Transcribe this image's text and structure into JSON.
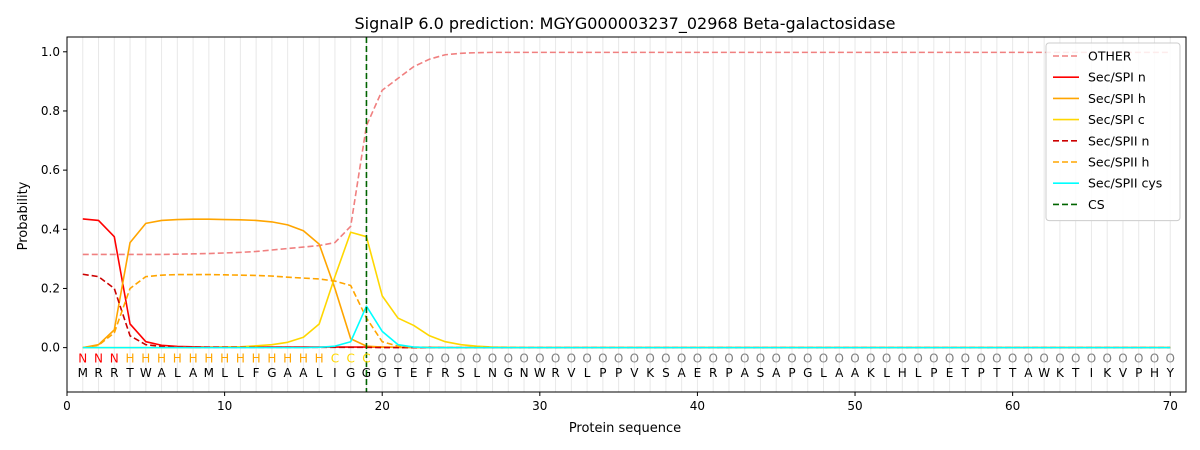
{
  "chart_data": {
    "type": "line",
    "title": "SignalP 6.0 prediction: MGYG000003237_02968 Beta-galactosidase",
    "xlabel": "Protein sequence",
    "ylabel": "Probability",
    "xlim": [
      0,
      71
    ],
    "ylim": [
      -0.15,
      1.05
    ],
    "xticks": [
      0,
      10,
      20,
      30,
      40,
      50,
      60,
      70
    ],
    "yticks": [
      0.0,
      0.2,
      0.4,
      0.6,
      0.8,
      1.0
    ],
    "legend_position": "top-right",
    "grid": "vertical lines at each residue position",
    "cleavage_site": 19,
    "sequence": [
      "M",
      "R",
      "R",
      "T",
      "W",
      "A",
      "L",
      "A",
      "M",
      "L",
      "L",
      "F",
      "G",
      "A",
      "A",
      "L",
      "I",
      "G",
      "G",
      "G",
      "T",
      "E",
      "F",
      "R",
      "S",
      "L",
      "N",
      "G",
      "N",
      "W",
      "R",
      "V",
      "L",
      "P",
      "P",
      "V",
      "K",
      "S",
      "A",
      "E",
      "R",
      "P",
      "A",
      "S",
      "A",
      "P",
      "G",
      "L",
      "A",
      "A",
      "K",
      "L",
      "H",
      "L",
      "P",
      "E",
      "T",
      "P",
      "T",
      "T",
      "A",
      "W",
      "K",
      "T",
      "I",
      "K",
      "V",
      "P",
      "H",
      "Y"
    ],
    "region_labels": [
      "N",
      "N",
      "N",
      "H",
      "H",
      "H",
      "H",
      "H",
      "H",
      "H",
      "H",
      "H",
      "H",
      "H",
      "H",
      "H",
      "C",
      "C",
      "C",
      "O",
      "O",
      "O",
      "O",
      "O",
      "O",
      "O",
      "O",
      "O",
      "O",
      "O",
      "O",
      "O",
      "O",
      "O",
      "O",
      "O",
      "O",
      "O",
      "O",
      "O",
      "O",
      "O",
      "O",
      "O",
      "O",
      "O",
      "O",
      "O",
      "O",
      "O",
      "O",
      "O",
      "O",
      "O",
      "O",
      "O",
      "O",
      "O",
      "O",
      "O",
      "O",
      "O",
      "O",
      "O",
      "O",
      "O",
      "O",
      "O",
      "O",
      "O"
    ],
    "region_colors": {
      "N": "#ff0000",
      "H": "#ffa500",
      "C": "#ffd700",
      "O": "#808080"
    },
    "series": [
      {
        "name": "OTHER",
        "color": "#f08080",
        "dash": "dashed",
        "values": [
          0.315,
          0.315,
          0.315,
          0.315,
          0.315,
          0.315,
          0.316,
          0.317,
          0.318,
          0.32,
          0.322,
          0.325,
          0.33,
          0.335,
          0.34,
          0.345,
          0.355,
          0.41,
          0.75,
          0.87,
          0.91,
          0.95,
          0.975,
          0.99,
          0.995,
          0.997,
          0.998,
          0.998,
          0.998,
          0.998,
          0.998,
          0.998,
          0.998,
          0.998,
          0.998,
          0.998,
          0.998,
          0.998,
          0.998,
          0.998,
          0.998,
          0.998,
          0.998,
          0.998,
          0.998,
          0.998,
          0.998,
          0.998,
          0.998,
          0.998,
          0.998,
          0.998,
          0.998,
          0.998,
          0.998,
          0.998,
          0.998,
          0.998,
          0.998,
          0.998,
          0.998,
          0.998,
          0.998,
          0.998,
          0.998,
          0.998,
          0.998,
          0.998,
          0.998,
          0.998
        ],
        "x_start": 1
      },
      {
        "name": "Sec/SPI n",
        "color": "#ff0000",
        "dash": "solid",
        "values": [
          0.435,
          0.43,
          0.375,
          0.08,
          0.02,
          0.008,
          0.004,
          0.003,
          0.002,
          0.002,
          0.002,
          0.002,
          0.002,
          0.002,
          0.002,
          0.002,
          0.002,
          0.002,
          0.002,
          0.002,
          0.001,
          0.001,
          0.001,
          0,
          0,
          0,
          0,
          0,
          0,
          0,
          0,
          0,
          0,
          0,
          0,
          0,
          0,
          0,
          0,
          0,
          0,
          0,
          0,
          0,
          0,
          0,
          0,
          0,
          0,
          0,
          0,
          0,
          0,
          0,
          0,
          0,
          0,
          0,
          0,
          0,
          0,
          0,
          0,
          0,
          0,
          0,
          0,
          0,
          0,
          0
        ],
        "x_start": 1
      },
      {
        "name": "Sec/SPI h",
        "color": "#ffa500",
        "dash": "solid",
        "values": [
          0.0,
          0.01,
          0.06,
          0.355,
          0.42,
          0.43,
          0.433,
          0.434,
          0.434,
          0.433,
          0.432,
          0.43,
          0.425,
          0.415,
          0.395,
          0.35,
          0.2,
          0.03,
          0.005,
          0.002,
          0.001,
          0,
          0,
          0,
          0,
          0,
          0,
          0,
          0,
          0,
          0,
          0,
          0,
          0,
          0,
          0,
          0,
          0,
          0,
          0,
          0,
          0,
          0,
          0,
          0,
          0,
          0,
          0,
          0,
          0,
          0,
          0,
          0,
          0,
          0,
          0,
          0,
          0,
          0,
          0,
          0,
          0,
          0,
          0,
          0,
          0,
          0,
          0,
          0,
          0
        ],
        "x_start": 1
      },
      {
        "name": "Sec/SPI c",
        "color": "#ffd700",
        "dash": "solid",
        "values": [
          0,
          0,
          0,
          0,
          0,
          0,
          0,
          0,
          0.001,
          0.002,
          0.003,
          0.006,
          0.01,
          0.018,
          0.035,
          0.08,
          0.24,
          0.39,
          0.375,
          0.175,
          0.1,
          0.075,
          0.04,
          0.02,
          0.01,
          0.005,
          0.002,
          0.001,
          0,
          0,
          0,
          0,
          0,
          0,
          0,
          0,
          0,
          0,
          0,
          0,
          0,
          0,
          0,
          0,
          0,
          0,
          0,
          0,
          0,
          0,
          0,
          0,
          0,
          0,
          0,
          0,
          0,
          0,
          0,
          0,
          0,
          0,
          0,
          0,
          0,
          0,
          0,
          0,
          0,
          0
        ],
        "x_start": 1
      },
      {
        "name": "Sec/SPII n",
        "color": "#cc0000",
        "dash": "dashed",
        "values": [
          0.248,
          0.24,
          0.2,
          0.04,
          0.01,
          0.004,
          0.002,
          0.001,
          0.001,
          0.001,
          0.001,
          0.001,
          0.001,
          0.001,
          0.001,
          0.001,
          0.001,
          0.001,
          0.001,
          0,
          0,
          0,
          0,
          0,
          0,
          0,
          0,
          0,
          0,
          0,
          0,
          0,
          0,
          0,
          0,
          0,
          0,
          0,
          0,
          0,
          0,
          0,
          0,
          0,
          0,
          0,
          0,
          0,
          0,
          0,
          0,
          0,
          0,
          0,
          0,
          0,
          0,
          0,
          0,
          0,
          0,
          0,
          0,
          0,
          0,
          0,
          0,
          0,
          0,
          0
        ],
        "x_start": 1
      },
      {
        "name": "Sec/SPII h",
        "color": "#ffa500",
        "dash": "dashed",
        "values": [
          0.0,
          0.008,
          0.05,
          0.2,
          0.24,
          0.245,
          0.247,
          0.247,
          0.247,
          0.246,
          0.245,
          0.244,
          0.242,
          0.238,
          0.235,
          0.232,
          0.225,
          0.21,
          0.1,
          0.02,
          0.005,
          0.002,
          0.001,
          0,
          0,
          0,
          0,
          0,
          0,
          0,
          0,
          0,
          0,
          0,
          0,
          0,
          0,
          0,
          0,
          0,
          0,
          0,
          0,
          0,
          0,
          0,
          0,
          0,
          0,
          0,
          0,
          0,
          0,
          0,
          0,
          0,
          0,
          0,
          0,
          0,
          0,
          0,
          0,
          0,
          0,
          0,
          0,
          0,
          0,
          0
        ],
        "x_start": 1
      },
      {
        "name": "Sec/SPII cys",
        "color": "#00ffff",
        "dash": "solid",
        "values": [
          0,
          0,
          0,
          0,
          0,
          0,
          0,
          0,
          0,
          0,
          0,
          0,
          0,
          0,
          0,
          0.001,
          0.005,
          0.02,
          0.14,
          0.055,
          0.01,
          0.002,
          0,
          0,
          0,
          0,
          0,
          0,
          0,
          0,
          0,
          0,
          0,
          0,
          0,
          0,
          0,
          0,
          0,
          0,
          0,
          0,
          0,
          0,
          0,
          0,
          0,
          0,
          0,
          0,
          0,
          0,
          0,
          0,
          0,
          0,
          0,
          0,
          0,
          0,
          0,
          0,
          0,
          0,
          0,
          0,
          0,
          0,
          0,
          0
        ],
        "x_start": 1
      },
      {
        "name": "CS",
        "color": "#006400",
        "dash": "dashed",
        "vertical_at": 19
      }
    ]
  }
}
